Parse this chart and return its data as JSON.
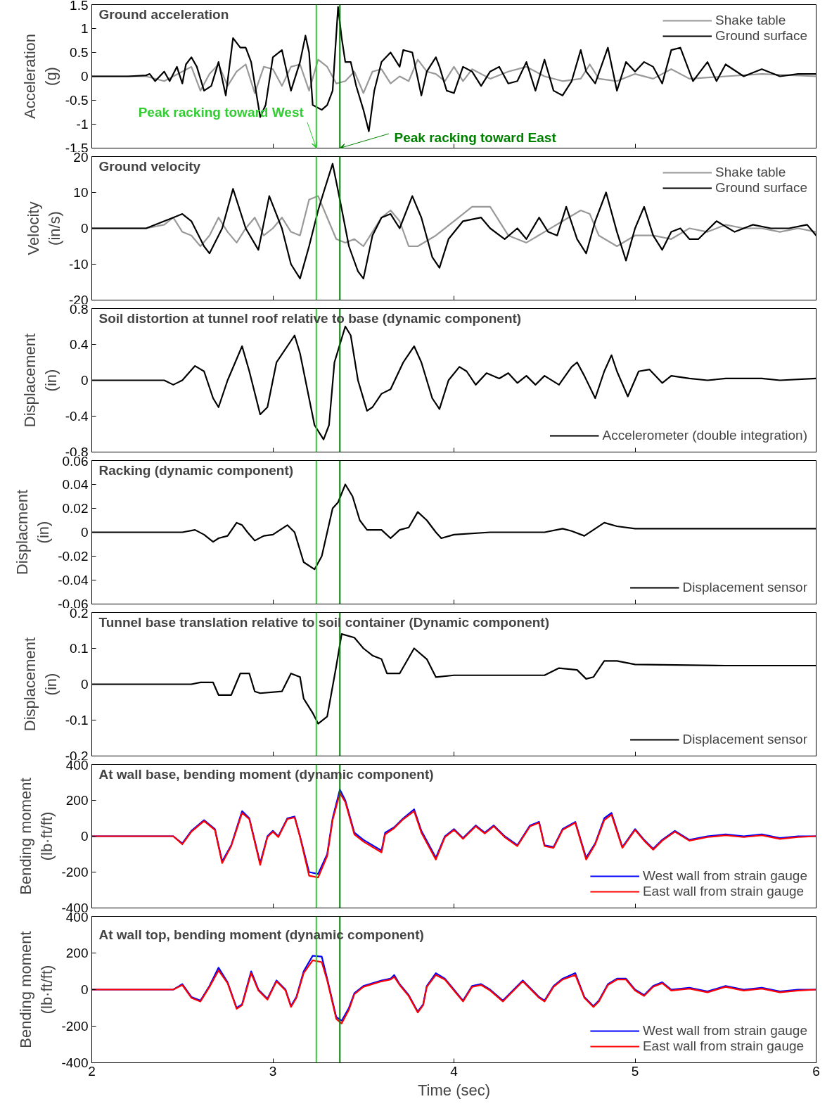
{
  "chart_data": [
    {
      "type": "line",
      "title": "Ground acceleration",
      "ylabel": "Acceleration\n(g)",
      "xlim": [
        2,
        6
      ],
      "xticks": [
        2,
        3,
        4,
        5,
        6
      ],
      "ylim": [
        -1.5,
        1.5
      ],
      "yticks": [
        -1.5,
        -1,
        -0.5,
        0,
        0.5,
        1,
        1.5
      ],
      "tick_labels": "y",
      "grid": false,
      "legend": "top right",
      "marker": "none",
      "line_style": "solid",
      "ref_lines": [
        {
          "axis": "x",
          "value": 3.24,
          "label": "Peak racking toward West",
          "color": "#33cc33"
        },
        {
          "axis": "x",
          "value": 3.37,
          "label": "Peak racking toward East",
          "color": "#008000"
        }
      ],
      "series": [
        {
          "name": "Shake table",
          "color": "#999999",
          "x": [
            2.0,
            2.3,
            2.4,
            2.5,
            2.55,
            2.6,
            2.65,
            2.7,
            2.75,
            2.8,
            2.85,
            2.9,
            2.95,
            3.0,
            3.05,
            3.1,
            3.15,
            3.2,
            3.25,
            3.3,
            3.35,
            3.4,
            3.45,
            3.5,
            3.55,
            3.6,
            3.65,
            3.7,
            3.75,
            3.8,
            3.85,
            3.9,
            3.95,
            4.0,
            4.05,
            4.1,
            4.2,
            4.3,
            4.4,
            4.5,
            4.6,
            4.7,
            4.75,
            4.8,
            4.9,
            5.0,
            5.1,
            5.2,
            5.3,
            5.5,
            5.7,
            6.0
          ],
          "values": [
            0,
            0,
            -0.1,
            0.1,
            0.2,
            -0.3,
            0.05,
            0.25,
            -0.2,
            0.1,
            0.25,
            -0.35,
            0.2,
            0.15,
            -0.2,
            0.2,
            0.25,
            -0.3,
            0.35,
            0.2,
            -0.15,
            -0.1,
            0.1,
            -0.35,
            0.1,
            0.15,
            -0.15,
            0,
            -0.1,
            0.35,
            0.1,
            0.05,
            -0.1,
            0.2,
            -0.1,
            0.15,
            -0.05,
            0.1,
            0.2,
            0,
            -0.1,
            -0.05,
            0.25,
            -0.05,
            -0.1,
            0.05,
            -0.05,
            0.15,
            -0.05,
            0,
            0.05,
            0
          ]
        },
        {
          "name": "Ground surface",
          "color": "#000000",
          "x": [
            2.0,
            2.2,
            2.3,
            2.32,
            2.35,
            2.4,
            2.43,
            2.47,
            2.5,
            2.52,
            2.55,
            2.58,
            2.62,
            2.66,
            2.7,
            2.74,
            2.78,
            2.82,
            2.85,
            2.88,
            2.93,
            2.96,
            3.0,
            3.05,
            3.1,
            3.15,
            3.18,
            3.2,
            3.22,
            3.27,
            3.3,
            3.33,
            3.36,
            3.38,
            3.4,
            3.43,
            3.46,
            3.5,
            3.53,
            3.56,
            3.6,
            3.65,
            3.7,
            3.72,
            3.77,
            3.82,
            3.85,
            3.9,
            3.92,
            3.96,
            4.0,
            4.05,
            4.1,
            4.15,
            4.2,
            4.25,
            4.3,
            4.35,
            4.4,
            4.45,
            4.5,
            4.55,
            4.6,
            4.65,
            4.7,
            4.73,
            4.78,
            4.85,
            4.9,
            4.95,
            5.0,
            5.05,
            5.1,
            5.15,
            5.2,
            5.25,
            5.32,
            5.4,
            5.45,
            5.5,
            5.6,
            5.7,
            5.8,
            5.9,
            6.0
          ],
          "values": [
            0,
            0,
            0.02,
            0.05,
            -0.1,
            0.1,
            -0.1,
            0.2,
            -0.15,
            0.25,
            0.4,
            0.2,
            -0.3,
            -0.2,
            0.3,
            -0.4,
            0.8,
            0.6,
            0.6,
            0.3,
            -0.85,
            -0.6,
            0.4,
            0.55,
            -0.3,
            0.3,
            0.85,
            0.5,
            -0.6,
            -0.7,
            -0.6,
            -0.3,
            1.45,
            0.8,
            0.3,
            0.3,
            -0.2,
            -0.7,
            -1.15,
            -0.3,
            0.3,
            0.5,
            0.2,
            0.55,
            0.5,
            -0.4,
            0.1,
            0.4,
            0.2,
            -0.3,
            -0.35,
            0.2,
            0.1,
            -0.2,
            0.1,
            0.2,
            -0.15,
            -0.1,
            0.3,
            -0.3,
            0.35,
            -0.3,
            -0.4,
            -0.1,
            0.55,
            0.1,
            -0.15,
            0.6,
            -0.3,
            0.3,
            0.1,
            0.3,
            0.2,
            -0.15,
            0.55,
            0.6,
            -0.1,
            0.3,
            -0.1,
            0.25,
            0,
            0.15,
            0,
            0.05,
            0.05
          ]
        }
      ]
    },
    {
      "type": "line",
      "title": "Ground velocity",
      "ylabel": "Velocity\n(in/s)",
      "xlim": [
        2,
        6
      ],
      "xticks": [
        2,
        3,
        4,
        5,
        6
      ],
      "ylim": [
        -20,
        20
      ],
      "yticks": [
        -20,
        -10,
        0,
        10,
        20
      ],
      "tick_labels": "y",
      "grid": false,
      "legend": "top right",
      "marker": "none",
      "line_style": "solid",
      "ref_lines": [
        {
          "axis": "x",
          "value": 3.24,
          "color": "#33cc33"
        },
        {
          "axis": "x",
          "value": 3.37,
          "color": "#008000"
        }
      ],
      "series": [
        {
          "name": "Shake table",
          "color": "#999999",
          "x": [
            2.0,
            2.3,
            2.4,
            2.45,
            2.5,
            2.55,
            2.6,
            2.65,
            2.7,
            2.75,
            2.8,
            2.85,
            2.9,
            2.95,
            3.0,
            3.05,
            3.1,
            3.15,
            3.2,
            3.25,
            3.3,
            3.35,
            3.4,
            3.45,
            3.5,
            3.55,
            3.6,
            3.65,
            3.7,
            3.75,
            3.8,
            3.9,
            4.0,
            4.1,
            4.2,
            4.3,
            4.4,
            4.5,
            4.6,
            4.7,
            4.75,
            4.8,
            4.9,
            5.0,
            5.1,
            5.2,
            5.3,
            5.4,
            5.5,
            5.6,
            5.7,
            5.8,
            5.9,
            6.0
          ],
          "values": [
            0,
            0,
            1,
            3,
            -1,
            -2,
            -5,
            -2,
            3,
            -1,
            -4,
            0,
            3,
            -2,
            0,
            3,
            -1,
            -2,
            8,
            9,
            3,
            -3,
            -4,
            -3,
            -5,
            -1,
            3,
            5,
            2,
            -5,
            -5,
            -2,
            2,
            6,
            6,
            -2,
            -4,
            -1,
            2,
            5,
            4,
            -2,
            -5,
            -2,
            -2,
            -3,
            0,
            -1,
            1,
            0,
            0,
            -1,
            0,
            -1
          ]
        },
        {
          "name": "Ground surface",
          "color": "#000000",
          "x": [
            2.0,
            2.3,
            2.45,
            2.5,
            2.55,
            2.62,
            2.65,
            2.72,
            2.78,
            2.85,
            2.92,
            2.98,
            3.05,
            3.1,
            3.15,
            3.2,
            3.25,
            3.28,
            3.33,
            3.37,
            3.42,
            3.47,
            3.5,
            3.55,
            3.6,
            3.65,
            3.7,
            3.77,
            3.82,
            3.88,
            3.92,
            3.97,
            4.05,
            4.15,
            4.2,
            4.28,
            4.35,
            4.4,
            4.47,
            4.52,
            4.57,
            4.62,
            4.68,
            4.73,
            4.78,
            4.84,
            4.9,
            4.95,
            5.0,
            5.05,
            5.1,
            5.15,
            5.2,
            5.25,
            5.3,
            5.35,
            5.45,
            5.55,
            5.65,
            5.75,
            5.85,
            5.95,
            6.0
          ],
          "values": [
            0,
            0,
            3,
            4,
            2,
            -5,
            -7,
            0,
            11,
            0,
            -6,
            9,
            0,
            -10,
            -14,
            -5,
            5,
            10,
            18,
            8,
            -5,
            -12,
            -14,
            -2,
            3,
            4,
            0,
            9,
            3,
            -8,
            -11,
            -3,
            2,
            3,
            0,
            -3,
            0,
            -3,
            3,
            -1,
            -2,
            6,
            -3,
            -7,
            2,
            10,
            -1,
            -9,
            0,
            6,
            -2,
            -6,
            -1,
            0,
            -3,
            -3,
            2,
            -1,
            1,
            0,
            0,
            1,
            -2
          ]
        }
      ]
    },
    {
      "type": "line",
      "title": "Soil distortion at tunnel roof relative to base (dynamic component)",
      "ylabel": "Displacement\n(in)",
      "xlim": [
        2,
        6
      ],
      "xticks": [
        2,
        3,
        4,
        5,
        6
      ],
      "ylim": [
        -0.8,
        0.8
      ],
      "yticks": [
        -0.8,
        -0.4,
        0,
        0.4,
        0.8
      ],
      "tick_labels": "y",
      "grid": false,
      "legend": "bottom right",
      "marker": "none",
      "line_style": "solid",
      "ref_lines": [
        {
          "axis": "x",
          "value": 3.24,
          "color": "#33cc33"
        },
        {
          "axis": "x",
          "value": 3.37,
          "color": "#008000"
        }
      ],
      "series": [
        {
          "name": "Accelerometer (double integration)",
          "color": "#000000",
          "x": [
            2.0,
            2.4,
            2.45,
            2.5,
            2.57,
            2.62,
            2.67,
            2.7,
            2.75,
            2.83,
            2.87,
            2.93,
            2.97,
            3.02,
            3.12,
            3.15,
            3.2,
            3.23,
            3.28,
            3.31,
            3.34,
            3.4,
            3.43,
            3.47,
            3.52,
            3.55,
            3.6,
            3.65,
            3.72,
            3.78,
            3.82,
            3.88,
            3.92,
            3.97,
            4.03,
            4.07,
            4.12,
            4.18,
            4.25,
            4.3,
            4.35,
            4.4,
            4.45,
            4.5,
            4.58,
            4.65,
            4.68,
            4.72,
            4.78,
            4.83,
            4.87,
            4.9,
            4.96,
            5.02,
            5.08,
            5.15,
            5.2,
            5.3,
            5.4,
            5.5,
            5.7,
            5.8,
            6.0
          ],
          "values": [
            0,
            0,
            -0.05,
            0,
            0.16,
            0.1,
            -0.2,
            -0.3,
            0,
            0.38,
            0.1,
            -0.38,
            -0.3,
            0.2,
            0.5,
            0.3,
            -0.2,
            -0.5,
            -0.66,
            -0.5,
            0.2,
            0.6,
            0.5,
            0,
            -0.34,
            -0.3,
            -0.15,
            -0.1,
            0.2,
            0.38,
            0.2,
            -0.2,
            -0.32,
            0,
            0.15,
            0.1,
            -0.05,
            0.08,
            0.02,
            0.08,
            -0.03,
            0.05,
            -0.05,
            0.05,
            -0.05,
            0.15,
            0.2,
            0.05,
            -0.2,
            0.1,
            0.28,
            0.1,
            -0.18,
            0.1,
            0.12,
            -0.03,
            0.05,
            0.02,
            0,
            0.02,
            0.02,
            0,
            0.02
          ]
        }
      ]
    },
    {
      "type": "line",
      "title": "Racking (dynamic component)",
      "ylabel": "Displacment\n(in)",
      "xlim": [
        2,
        6
      ],
      "xticks": [
        2,
        3,
        4,
        5,
        6
      ],
      "ylim": [
        -0.06,
        0.06
      ],
      "yticks": [
        -0.06,
        -0.04,
        -0.02,
        0,
        0.02,
        0.04,
        0.06
      ],
      "tick_labels": "y",
      "grid": false,
      "legend": "bottom right",
      "marker": "none",
      "line_style": "solid",
      "ref_lines": [
        {
          "axis": "x",
          "value": 3.24,
          "color": "#33cc33"
        },
        {
          "axis": "x",
          "value": 3.37,
          "color": "#008000"
        }
      ],
      "series": [
        {
          "name": "Displacement sensor",
          "color": "#000000",
          "x": [
            2.0,
            2.5,
            2.57,
            2.62,
            2.67,
            2.7,
            2.75,
            2.8,
            2.83,
            2.86,
            2.9,
            2.95,
            3.0,
            3.08,
            3.12,
            3.17,
            3.23,
            3.27,
            3.33,
            3.36,
            3.4,
            3.44,
            3.48,
            3.52,
            3.6,
            3.65,
            3.7,
            3.75,
            3.8,
            3.85,
            3.9,
            3.93,
            4.0,
            4.2,
            4.5,
            4.6,
            4.65,
            4.72,
            4.77,
            4.83,
            4.9,
            5.0,
            5.5,
            6.0
          ],
          "values": [
            0,
            0,
            0.002,
            -0.002,
            -0.008,
            -0.005,
            -0.003,
            0.008,
            0.006,
            0,
            -0.007,
            -0.003,
            -0.002,
            0.006,
            0,
            -0.025,
            -0.031,
            -0.02,
            0.02,
            0.025,
            0.04,
            0.03,
            0.01,
            0.002,
            0.002,
            -0.005,
            0.002,
            0.004,
            0.017,
            0.01,
            0,
            -0.005,
            -0.002,
            0,
            0,
            0.003,
            0.001,
            -0.003,
            0.002,
            0.008,
            0.005,
            0.003,
            0.003,
            0.003
          ]
        }
      ]
    },
    {
      "type": "line",
      "title": "Tunnel base translation relative to soil container (Dynamic component)",
      "ylabel": "Displacement\n(in)",
      "xlim": [
        2,
        6
      ],
      "xticks": [
        2,
        3,
        4,
        5,
        6
      ],
      "ylim": [
        -0.2,
        0.2
      ],
      "yticks": [
        -0.2,
        -0.1,
        0,
        0.1,
        0.2
      ],
      "tick_labels": "y",
      "grid": false,
      "legend": "bottom right",
      "marker": "none",
      "line_style": "solid",
      "ref_lines": [
        {
          "axis": "x",
          "value": 3.24,
          "color": "#33cc33"
        },
        {
          "axis": "x",
          "value": 3.37,
          "color": "#008000"
        }
      ],
      "series": [
        {
          "name": "Displacement sensor",
          "color": "#000000",
          "x": [
            2.0,
            2.55,
            2.6,
            2.67,
            2.7,
            2.77,
            2.82,
            2.87,
            2.9,
            2.93,
            3.05,
            3.1,
            3.15,
            3.17,
            3.22,
            3.25,
            3.3,
            3.35,
            3.38,
            3.45,
            3.5,
            3.55,
            3.6,
            3.63,
            3.7,
            3.78,
            3.85,
            3.9,
            4.0,
            4.5,
            4.58,
            4.68,
            4.73,
            4.77,
            4.83,
            4.9,
            5.0,
            5.5,
            6.0
          ],
          "values": [
            0,
            0,
            0.005,
            0.005,
            -0.03,
            -0.03,
            0.03,
            0.03,
            -0.02,
            -0.025,
            -0.02,
            0.03,
            0.02,
            -0.04,
            -0.08,
            -0.11,
            -0.09,
            0.05,
            0.14,
            0.13,
            0.1,
            0.08,
            0.07,
            0.03,
            0.03,
            0.1,
            0.07,
            0.02,
            0.025,
            0.025,
            0.045,
            0.04,
            0.015,
            0.02,
            0.065,
            0.065,
            0.055,
            0.052,
            0.052
          ]
        }
      ]
    },
    {
      "type": "line",
      "title": "At wall base, bending moment (dynamic component)",
      "ylabel": "Bending moment\n(lb·ft/ft)",
      "xlim": [
        2,
        6
      ],
      "xticks": [
        2,
        3,
        4,
        5,
        6
      ],
      "ylim": [
        -400,
        400
      ],
      "yticks": [
        -400,
        -200,
        0,
        200,
        400
      ],
      "tick_labels": "y",
      "grid": false,
      "legend": "bottom right",
      "marker": "none",
      "line_style": "solid",
      "ref_lines": [
        {
          "axis": "x",
          "value": 3.24,
          "color": "#33cc33"
        },
        {
          "axis": "x",
          "value": 3.37,
          "color": "#008000"
        }
      ],
      "series": [
        {
          "name": "West wall from strain gauge",
          "color": "#0000ff",
          "x": [
            2.0,
            2.45,
            2.5,
            2.55,
            2.62,
            2.68,
            2.72,
            2.77,
            2.83,
            2.87,
            2.93,
            2.97,
            3.0,
            3.03,
            3.08,
            3.12,
            3.15,
            3.2,
            3.25,
            3.3,
            3.33,
            3.37,
            3.4,
            3.45,
            3.5,
            3.6,
            3.62,
            3.67,
            3.72,
            3.78,
            3.82,
            3.9,
            3.95,
            4.0,
            4.05,
            4.12,
            4.17,
            4.22,
            4.28,
            4.35,
            4.42,
            4.47,
            4.5,
            4.55,
            4.6,
            4.67,
            4.73,
            4.78,
            4.83,
            4.87,
            4.93,
            5.0,
            5.05,
            5.1,
            5.15,
            5.22,
            5.3,
            5.4,
            5.5,
            5.6,
            5.7,
            5.8,
            5.9,
            6.0
          ],
          "values": [
            0,
            0,
            -40,
            30,
            90,
            40,
            -140,
            -50,
            140,
            100,
            -150,
            0,
            30,
            0,
            100,
            110,
            0,
            -200,
            -210,
            -100,
            100,
            260,
            200,
            20,
            -20,
            -80,
            20,
            50,
            100,
            150,
            30,
            -120,
            0,
            40,
            -10,
            60,
            20,
            60,
            0,
            -50,
            60,
            80,
            -50,
            -60,
            40,
            80,
            -120,
            -40,
            100,
            130,
            -60,
            40,
            -20,
            -70,
            -20,
            30,
            -20,
            0,
            10,
            0,
            10,
            -10,
            0,
            0
          ]
        },
        {
          "name": "East wall from strain gauge",
          "color": "#ff0000",
          "x": [
            2.0,
            2.45,
            2.5,
            2.55,
            2.62,
            2.68,
            2.72,
            2.77,
            2.83,
            2.87,
            2.93,
            2.97,
            3.0,
            3.03,
            3.08,
            3.12,
            3.15,
            3.2,
            3.25,
            3.3,
            3.33,
            3.37,
            3.4,
            3.45,
            3.5,
            3.6,
            3.62,
            3.67,
            3.72,
            3.78,
            3.82,
            3.9,
            3.95,
            4.0,
            4.05,
            4.12,
            4.17,
            4.22,
            4.28,
            4.35,
            4.42,
            4.47,
            4.5,
            4.55,
            4.6,
            4.67,
            4.73,
            4.78,
            4.83,
            4.87,
            4.93,
            5.0,
            5.05,
            5.1,
            5.15,
            5.22,
            5.3,
            5.4,
            5.5,
            5.6,
            5.7,
            5.8,
            5.9,
            6.0
          ],
          "values": [
            0,
            0,
            -45,
            25,
            85,
            35,
            -150,
            -55,
            130,
            95,
            -160,
            -5,
            25,
            -5,
            95,
            105,
            -5,
            -220,
            -230,
            -110,
            90,
            240,
            190,
            10,
            -30,
            -90,
            10,
            45,
            95,
            140,
            20,
            -130,
            -5,
            35,
            -15,
            55,
            15,
            55,
            -5,
            -55,
            55,
            75,
            -55,
            -65,
            35,
            75,
            -130,
            -45,
            90,
            120,
            -65,
            35,
            -25,
            -75,
            -25,
            25,
            -25,
            -5,
            5,
            -5,
            5,
            -15,
            -5,
            0
          ]
        }
      ]
    },
    {
      "type": "line",
      "title": "At wall top, bending moment (dynamic component)",
      "xlabel": "Time (sec)",
      "ylabel": "Bending moment\n(lb·ft/ft)",
      "xlim": [
        2,
        6
      ],
      "xticks": [
        2,
        3,
        4,
        5,
        6
      ],
      "ylim": [
        -400,
        400
      ],
      "yticks": [
        -400,
        -200,
        0,
        200,
        400
      ],
      "grid": false,
      "legend": "bottom right",
      "marker": "none",
      "line_style": "solid",
      "ref_lines": [
        {
          "axis": "x",
          "value": 3.24,
          "color": "#33cc33"
        },
        {
          "axis": "x",
          "value": 3.37,
          "color": "#008000"
        }
      ],
      "series": [
        {
          "name": "West wall from strain gauge",
          "color": "#0000ff",
          "x": [
            2.0,
            2.45,
            2.5,
            2.55,
            2.6,
            2.65,
            2.7,
            2.75,
            2.8,
            2.83,
            2.88,
            2.92,
            2.97,
            3.02,
            3.07,
            3.1,
            3.13,
            3.17,
            3.22,
            3.27,
            3.3,
            3.35,
            3.38,
            3.42,
            3.45,
            3.5,
            3.6,
            3.65,
            3.67,
            3.7,
            3.75,
            3.8,
            3.83,
            3.85,
            3.9,
            3.95,
            4.0,
            4.05,
            4.1,
            4.15,
            4.2,
            4.27,
            4.3,
            4.38,
            4.4,
            4.47,
            4.5,
            4.55,
            4.6,
            4.67,
            4.72,
            4.77,
            4.8,
            4.85,
            4.9,
            4.95,
            5.0,
            5.05,
            5.1,
            5.15,
            5.2,
            5.3,
            5.4,
            5.5,
            5.6,
            5.7,
            5.8,
            5.9,
            6.0
          ],
          "values": [
            0,
            0,
            30,
            -40,
            -60,
            20,
            120,
            40,
            -100,
            -80,
            100,
            0,
            -50,
            50,
            0,
            -90,
            -40,
            100,
            185,
            180,
            60,
            -150,
            -170,
            -100,
            -20,
            20,
            50,
            60,
            80,
            30,
            -30,
            -120,
            -80,
            20,
            90,
            60,
            0,
            -60,
            20,
            30,
            0,
            -60,
            -30,
            50,
            30,
            -40,
            -60,
            20,
            60,
            90,
            -40,
            -90,
            -60,
            30,
            60,
            60,
            0,
            -30,
            20,
            40,
            0,
            10,
            -10,
            20,
            0,
            10,
            -10,
            0,
            0
          ]
        },
        {
          "name": "East wall from strain gauge",
          "color": "#ff0000",
          "x": [
            2.0,
            2.45,
            2.5,
            2.55,
            2.6,
            2.65,
            2.7,
            2.75,
            2.8,
            2.83,
            2.88,
            2.92,
            2.97,
            3.02,
            3.07,
            3.1,
            3.13,
            3.17,
            3.22,
            3.27,
            3.3,
            3.35,
            3.38,
            3.42,
            3.45,
            3.5,
            3.6,
            3.65,
            3.67,
            3.7,
            3.75,
            3.8,
            3.83,
            3.85,
            3.9,
            3.95,
            4.0,
            4.05,
            4.1,
            4.15,
            4.2,
            4.27,
            4.3,
            4.38,
            4.4,
            4.47,
            4.5,
            4.55,
            4.6,
            4.67,
            4.72,
            4.77,
            4.8,
            4.85,
            4.9,
            4.95,
            5.0,
            5.05,
            5.1,
            5.15,
            5.2,
            5.3,
            5.4,
            5.5,
            5.6,
            5.7,
            5.8,
            5.9,
            6.0
          ],
          "values": [
            0,
            0,
            25,
            -45,
            -65,
            15,
            105,
            35,
            -105,
            -85,
            90,
            -5,
            -55,
            45,
            -5,
            -95,
            -45,
            90,
            160,
            150,
            50,
            -160,
            -185,
            -110,
            -25,
            15,
            45,
            55,
            70,
            25,
            -35,
            -125,
            -85,
            15,
            80,
            55,
            -5,
            -65,
            15,
            25,
            -5,
            -65,
            -35,
            45,
            25,
            -45,
            -65,
            15,
            55,
            80,
            -45,
            -95,
            -65,
            25,
            55,
            55,
            -5,
            -35,
            15,
            35,
            -5,
            5,
            -15,
            15,
            -5,
            5,
            -15,
            -5,
            0
          ]
        }
      ]
    }
  ]
}
